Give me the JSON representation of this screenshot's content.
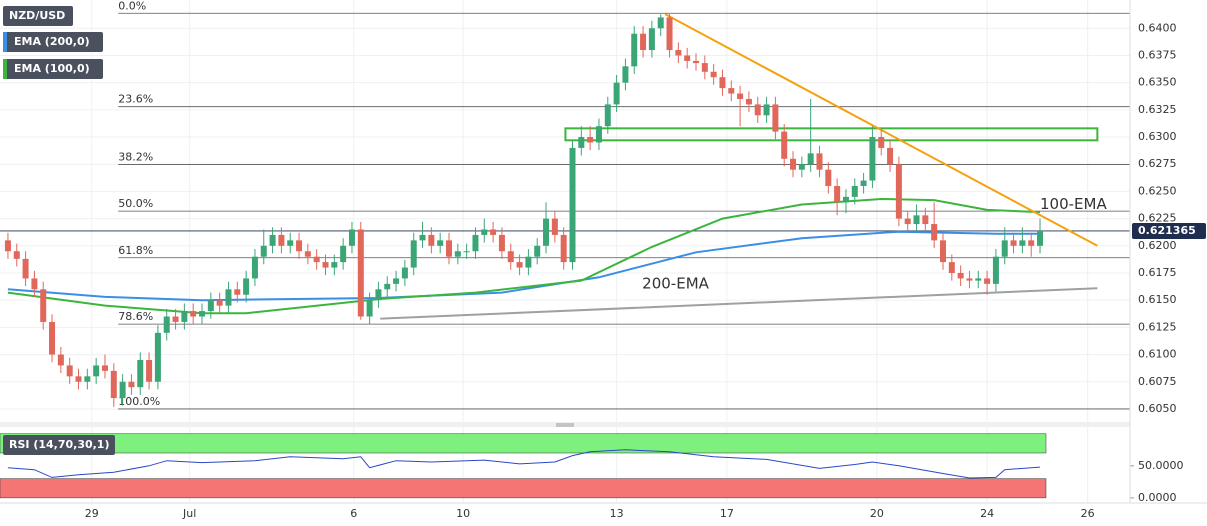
{
  "chart_data": {
    "type": "candlestick",
    "symbol": "NZD/USD",
    "candles": {
      "up_color": "#3aa676",
      "down_color": "#e0675a",
      "open": [
        0.6205,
        0.6195,
        0.6188,
        0.617,
        0.616,
        0.613,
        0.61,
        0.609,
        0.608,
        0.6075,
        0.608,
        0.609,
        0.6085,
        0.606,
        0.6075,
        0.607,
        0.6095,
        0.6075,
        0.612,
        0.6135,
        0.613,
        0.614,
        0.6135,
        0.614,
        0.615,
        0.6145,
        0.616,
        0.6155,
        0.617,
        0.619,
        0.62,
        0.621,
        0.62,
        0.6205,
        0.6195,
        0.619,
        0.6185,
        0.618,
        0.6185,
        0.62,
        0.6215,
        0.6135,
        0.615,
        0.616,
        0.6165,
        0.617,
        0.618,
        0.6205,
        0.621,
        0.62,
        0.6205,
        0.619,
        0.6195,
        0.6195,
        0.621,
        0.6215,
        0.621,
        0.6195,
        0.6185,
        0.618,
        0.619,
        0.62,
        0.6225,
        0.621,
        0.6185,
        0.629,
        0.63,
        0.6295,
        0.631,
        0.633,
        0.635,
        0.6365,
        0.6395,
        0.638,
        0.64,
        0.641,
        0.638,
        0.6375,
        0.637,
        0.6368,
        0.636,
        0.6355,
        0.6345,
        0.634,
        0.6335,
        0.633,
        0.632,
        0.633,
        0.6305,
        0.628,
        0.627,
        0.6275,
        0.6285,
        0.627,
        0.6255,
        0.624,
        0.6245,
        0.6255,
        0.626,
        0.63,
        0.629,
        0.6275,
        0.6225,
        0.622,
        0.6228,
        0.622,
        0.6205,
        0.6185,
        0.6175,
        0.617,
        0.6168,
        0.617,
        0.6165,
        0.619,
        0.6205,
        0.62,
        0.6205,
        0.62
      ],
      "high": [
        0.6212,
        0.6202,
        0.6195,
        0.6177,
        0.6167,
        0.6137,
        0.6107,
        0.6097,
        0.6087,
        0.6087,
        0.6097,
        0.61,
        0.6092,
        0.6082,
        0.6082,
        0.6102,
        0.6102,
        0.6127,
        0.6142,
        0.6142,
        0.6147,
        0.6147,
        0.6147,
        0.6157,
        0.6157,
        0.6167,
        0.6167,
        0.6177,
        0.6197,
        0.6215,
        0.6217,
        0.6217,
        0.6212,
        0.6212,
        0.6202,
        0.6197,
        0.6192,
        0.6192,
        0.6207,
        0.6222,
        0.6222,
        0.6157,
        0.6167,
        0.6172,
        0.6177,
        0.6187,
        0.6212,
        0.6222,
        0.6217,
        0.6212,
        0.6212,
        0.6202,
        0.6202,
        0.6217,
        0.6225,
        0.6222,
        0.6217,
        0.6202,
        0.6192,
        0.6197,
        0.6207,
        0.624,
        0.6232,
        0.6217,
        0.6297,
        0.631,
        0.631,
        0.6317,
        0.6337,
        0.6357,
        0.6372,
        0.6402,
        0.6402,
        0.6407,
        0.6413,
        0.6413,
        0.6387,
        0.6382,
        0.6377,
        0.6375,
        0.6367,
        0.6362,
        0.6352,
        0.6347,
        0.6342,
        0.6337,
        0.6337,
        0.6337,
        0.6312,
        0.6287,
        0.6282,
        0.6335,
        0.6292,
        0.6277,
        0.6262,
        0.6252,
        0.6262,
        0.6267,
        0.631,
        0.6307,
        0.6297,
        0.6282,
        0.6232,
        0.6238,
        0.6235,
        0.624,
        0.6212,
        0.6192,
        0.6182,
        0.6177,
        0.6177,
        0.6177,
        0.6197,
        0.6217,
        0.6212,
        0.6217,
        0.6212,
        0.6225
      ],
      "low": [
        0.6188,
        0.6181,
        0.6163,
        0.6153,
        0.6123,
        0.6093,
        0.6083,
        0.6073,
        0.6068,
        0.6068,
        0.6073,
        0.6078,
        0.6052,
        0.6053,
        0.6063,
        0.6063,
        0.6068,
        0.6068,
        0.6113,
        0.6123,
        0.6123,
        0.6128,
        0.6128,
        0.6133,
        0.6138,
        0.6138,
        0.6148,
        0.6148,
        0.6163,
        0.6183,
        0.6193,
        0.6193,
        0.6193,
        0.6188,
        0.6183,
        0.6178,
        0.6173,
        0.6173,
        0.6178,
        0.6193,
        0.6132,
        0.6128,
        0.6143,
        0.6153,
        0.6158,
        0.6163,
        0.6173,
        0.6198,
        0.6193,
        0.6193,
        0.6183,
        0.6183,
        0.6188,
        0.6188,
        0.6203,
        0.6203,
        0.6188,
        0.6178,
        0.6173,
        0.6173,
        0.6183,
        0.6193,
        0.6203,
        0.6178,
        0.6178,
        0.6283,
        0.6288,
        0.6288,
        0.6303,
        0.6323,
        0.6343,
        0.6358,
        0.6373,
        0.6373,
        0.6393,
        0.6373,
        0.6368,
        0.6363,
        0.6361,
        0.6353,
        0.6348,
        0.6338,
        0.6333,
        0.631,
        0.6323,
        0.6313,
        0.6313,
        0.6298,
        0.6273,
        0.6263,
        0.6263,
        0.6268,
        0.6263,
        0.6248,
        0.6228,
        0.623,
        0.6238,
        0.6248,
        0.6253,
        0.6283,
        0.6268,
        0.6218,
        0.6213,
        0.6213,
        0.6213,
        0.6198,
        0.6178,
        0.6168,
        0.6163,
        0.6161,
        0.6161,
        0.6155,
        0.6158,
        0.6183,
        0.6193,
        0.6193,
        0.619,
        0.6193
      ],
      "close": [
        0.6195,
        0.6188,
        0.617,
        0.616,
        0.613,
        0.61,
        0.609,
        0.608,
        0.6075,
        0.608,
        0.609,
        0.6085,
        0.606,
        0.6075,
        0.607,
        0.6095,
        0.6075,
        0.612,
        0.6135,
        0.613,
        0.614,
        0.6135,
        0.614,
        0.615,
        0.6145,
        0.616,
        0.6155,
        0.617,
        0.619,
        0.62,
        0.621,
        0.62,
        0.6205,
        0.6195,
        0.619,
        0.6185,
        0.618,
        0.6185,
        0.62,
        0.6215,
        0.6135,
        0.615,
        0.616,
        0.6165,
        0.617,
        0.618,
        0.6205,
        0.621,
        0.62,
        0.6205,
        0.619,
        0.6195,
        0.6195,
        0.621,
        0.6215,
        0.621,
        0.6195,
        0.6185,
        0.618,
        0.619,
        0.62,
        0.6225,
        0.621,
        0.6185,
        0.629,
        0.63,
        0.6295,
        0.631,
        0.633,
        0.635,
        0.6365,
        0.6395,
        0.638,
        0.64,
        0.641,
        0.638,
        0.6375,
        0.637,
        0.6368,
        0.636,
        0.6355,
        0.6345,
        0.634,
        0.6335,
        0.633,
        0.632,
        0.633,
        0.6305,
        0.628,
        0.627,
        0.6275,
        0.6285,
        0.627,
        0.6255,
        0.624,
        0.6245,
        0.6255,
        0.626,
        0.63,
        0.629,
        0.6275,
        0.6225,
        0.622,
        0.6228,
        0.622,
        0.6205,
        0.6185,
        0.6175,
        0.617,
        0.6168,
        0.617,
        0.6165,
        0.619,
        0.6205,
        0.62,
        0.6205,
        0.62,
        0.6213
      ]
    },
    "series": [
      {
        "name": "EMA (200,0)",
        "color": "#3a8ee6",
        "x": [
          0,
          11,
          22,
          42,
          56,
          67,
          78,
          90,
          101,
          112,
          117
        ],
        "values": [
          0.616,
          0.6153,
          0.615,
          0.6152,
          0.6157,
          0.6171,
          0.6194,
          0.6207,
          0.6213,
          0.6211,
          0.6211
        ]
      },
      {
        "name": "EMA (100,0)",
        "color": "#3cb53c",
        "x": [
          0,
          11,
          22,
          27,
          42,
          53,
          65,
          73,
          81,
          90,
          99,
          105,
          111,
          117
        ],
        "values": [
          0.6157,
          0.6145,
          0.6138,
          0.6138,
          0.6151,
          0.6157,
          0.6168,
          0.6199,
          0.6225,
          0.6238,
          0.6243,
          0.6242,
          0.6233,
          0.6231
        ]
      }
    ],
    "xlim": [
      -0.9,
      127.2
    ],
    "xticks": [
      {
        "value": 9.5,
        "label": "29"
      },
      {
        "value": 20.6,
        "label": "Jul"
      },
      {
        "value": 39.2,
        "label": "6"
      },
      {
        "value": 51.6,
        "label": "10"
      },
      {
        "value": 69.0,
        "label": "13"
      },
      {
        "value": 81.5,
        "label": "17"
      },
      {
        "value": 98.5,
        "label": "20"
      },
      {
        "value": 111.0,
        "label": "24"
      },
      {
        "value": 122.4,
        "label": "26"
      }
    ],
    "ylim": [
      0.6038,
      0.6426
    ],
    "yticks": [
      {
        "value": 0.605,
        "label": "0.6050"
      },
      {
        "value": 0.6075,
        "label": "0.6075"
      },
      {
        "value": 0.61,
        "label": "0.6100"
      },
      {
        "value": 0.6125,
        "label": "0.6125"
      },
      {
        "value": 0.615,
        "label": "0.6150"
      },
      {
        "value": 0.6175,
        "label": "0.6175"
      },
      {
        "value": 0.62,
        "label": "0.6200"
      },
      {
        "value": 0.6225,
        "label": "0.6225"
      },
      {
        "value": 0.625,
        "label": "0.6250"
      },
      {
        "value": 0.6275,
        "label": "0.6275"
      },
      {
        "value": 0.63,
        "label": "0.6300"
      },
      {
        "value": 0.6325,
        "label": "0.6325"
      },
      {
        "value": 0.635,
        "label": "0.6350"
      },
      {
        "value": 0.6375,
        "label": "0.6375"
      },
      {
        "value": 0.64,
        "label": "0.6400"
      }
    ],
    "grid": true,
    "last_price": 0.621365,
    "last_price_color": "#1f2d4e",
    "fibonacci": [
      {
        "label": "0.0%",
        "value": 0.64138
      },
      {
        "label": "23.6%",
        "value": 0.63279
      },
      {
        "label": "38.2%",
        "value": 0.62748
      },
      {
        "label": "50.0%",
        "value": 0.62319
      },
      {
        "label": "61.8%",
        "value": 0.6189
      },
      {
        "label": "78.6%",
        "value": 0.6128
      },
      {
        "label": "100.0%",
        "value": 0.605
      }
    ],
    "trendlines": [
      {
        "color": "#f5a10f",
        "x": [
          74.5,
          123.5
        ],
        "values": [
          0.6413,
          0.62
        ]
      },
      {
        "color": "#a0a0a0",
        "x": [
          42.2,
          123.5
        ],
        "values": [
          0.6133,
          0.6161
        ]
      }
    ],
    "zone": {
      "color": "#3cb53c",
      "x": [
        63.2,
        123.5
      ],
      "values": [
        0.6297,
        0.6308
      ]
    },
    "annotations": [
      {
        "text": "100-EMA",
        "x": 117,
        "value": 0.6238,
        "color": "#3cb53c"
      },
      {
        "text": "200-EMA",
        "x": 71.9,
        "value": 0.6165,
        "color": "#3a8ee6"
      }
    ],
    "rsi": {
      "title": "RSI (14,70,30,1)",
      "color": "#2a48c8",
      "ylim": [
        -8,
        109
      ],
      "yticks": [
        {
          "value": 50,
          "label": "50.0000"
        },
        {
          "value": 0,
          "label": "0.0000"
        }
      ],
      "overbought": 70,
      "oversold": 30,
      "x": [
        0,
        3,
        5,
        8,
        12,
        16,
        18,
        22,
        28,
        32,
        38,
        40,
        41,
        44,
        48,
        54,
        58,
        62,
        64,
        66,
        70,
        75,
        80,
        86,
        92,
        96,
        98,
        101,
        106,
        109,
        112,
        113,
        117
      ],
      "values": [
        47,
        44,
        32,
        36,
        40,
        50,
        58,
        55,
        58,
        64,
        61,
        64,
        47,
        58,
        56,
        59,
        53,
        56,
        66,
        72,
        75,
        72,
        64,
        60,
        46,
        52,
        56,
        50,
        38,
        31,
        32,
        44,
        48
      ]
    }
  }
}
